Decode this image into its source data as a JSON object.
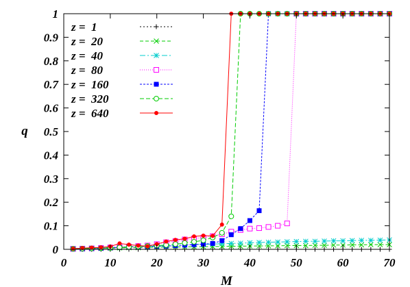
{
  "chart_data": {
    "type": "line",
    "xlabel": "M",
    "ylabel": "q",
    "xlim": [
      0,
      70
    ],
    "ylim": [
      0,
      1
    ],
    "x_ticks": [
      "0",
      "10",
      "20",
      "30",
      "40",
      "50",
      "60",
      "70"
    ],
    "y_ticks": [
      "0",
      "0.1",
      "0.2",
      "0.3",
      "0.4",
      "0.5",
      "0.6",
      "0.7",
      "0.8",
      "0.9",
      "1"
    ],
    "grid": false,
    "legend_position": "top-left",
    "series": [
      {
        "name": "z =  1",
        "color": "#000000",
        "marker": "plus",
        "dash": "2,3",
        "x": [
          2,
          4,
          6,
          8,
          10,
          12,
          14,
          16,
          18,
          20,
          22,
          24,
          26,
          28,
          30,
          32,
          34,
          36,
          38,
          40,
          42,
          44,
          46,
          48,
          50,
          52,
          54,
          56,
          58,
          60,
          62,
          64,
          66,
          68,
          70
        ],
        "y": [
          0,
          0,
          0,
          0,
          0,
          0,
          0,
          0,
          0,
          0,
          0,
          0,
          0,
          0,
          0,
          0,
          0,
          0,
          0,
          0,
          0,
          0,
          0,
          0,
          0,
          0,
          0,
          0,
          0,
          0,
          0,
          0,
          0,
          0,
          0
        ]
      },
      {
        "name": "z =  20",
        "color": "#00cc00",
        "marker": "x",
        "dash": "5,3",
        "x": [
          2,
          4,
          6,
          8,
          10,
          12,
          14,
          16,
          18,
          20,
          22,
          24,
          26,
          28,
          30,
          32,
          34,
          36,
          38,
          40,
          42,
          44,
          46,
          48,
          50,
          52,
          54,
          56,
          58,
          60,
          62,
          64,
          66,
          68,
          70
        ],
        "y": [
          0.002,
          0.003,
          0.004,
          0.004,
          0.005,
          0.006,
          0.007,
          0.007,
          0.008,
          0.009,
          0.009,
          0.01,
          0.01,
          0.011,
          0.011,
          0.012,
          0.012,
          0.013,
          0.013,
          0.014,
          0.014,
          0.015,
          0.015,
          0.016,
          0.016,
          0.016,
          0.017,
          0.017,
          0.018,
          0.018,
          0.019,
          0.019,
          0.02,
          0.02,
          0.02
        ]
      },
      {
        "name": "z =  40",
        "color": "#00cccc",
        "marker": "star",
        "dash": "8,3,2,3",
        "x": [
          2,
          4,
          6,
          8,
          10,
          12,
          14,
          16,
          18,
          20,
          22,
          24,
          26,
          28,
          30,
          32,
          34,
          36,
          38,
          40,
          42,
          44,
          46,
          48,
          50,
          52,
          54,
          56,
          58,
          60,
          62,
          64,
          66,
          68,
          70
        ],
        "y": [
          0.003,
          0.004,
          0.005,
          0.006,
          0.008,
          0.009,
          0.01,
          0.012,
          0.013,
          0.014,
          0.016,
          0.017,
          0.018,
          0.02,
          0.021,
          0.022,
          0.024,
          0.025,
          0.026,
          0.028,
          0.029,
          0.03,
          0.031,
          0.032,
          0.033,
          0.034,
          0.034,
          0.035,
          0.036,
          0.036,
          0.037,
          0.038,
          0.038,
          0.039,
          0.04
        ]
      },
      {
        "name": "z =  80",
        "color": "#ff00ff",
        "marker": "square-open",
        "dash": "1,2",
        "x": [
          2,
          4,
          6,
          8,
          10,
          12,
          14,
          16,
          18,
          20,
          22,
          24,
          26,
          28,
          30,
          32,
          34,
          36,
          38,
          40,
          42,
          44,
          46,
          48,
          50,
          52,
          54,
          56,
          58,
          60,
          62,
          64,
          66,
          68,
          70
        ],
        "y": [
          0.002,
          0.003,
          0.004,
          0.006,
          0.008,
          0.012,
          0.012,
          0.014,
          0.016,
          0.022,
          0.03,
          0.035,
          0.042,
          0.046,
          0.05,
          0.056,
          0.064,
          0.075,
          0.082,
          0.088,
          0.09,
          0.095,
          0.1,
          0.11,
          1,
          1,
          1,
          1,
          1,
          1,
          1,
          1,
          1,
          1,
          1
        ]
      },
      {
        "name": "z =  160",
        "color": "#0000ff",
        "marker": "square-filled",
        "dash": "3,2",
        "x": [
          2,
          4,
          6,
          8,
          10,
          12,
          14,
          16,
          18,
          20,
          22,
          24,
          26,
          28,
          30,
          32,
          34,
          36,
          38,
          40,
          42,
          44,
          46,
          48,
          50,
          52,
          54,
          56,
          58,
          60,
          62,
          64,
          66,
          68,
          70
        ],
        "y": [
          0.002,
          0.002,
          0.003,
          0.004,
          0.006,
          0.008,
          0.01,
          0.011,
          0.012,
          0.013,
          0.014,
          0.016,
          0.018,
          0.02,
          0.022,
          0.025,
          0.037,
          0.062,
          0.088,
          0.122,
          0.164,
          1,
          1,
          1,
          1,
          1,
          1,
          1,
          1,
          1,
          1,
          1,
          1,
          1,
          1
        ]
      },
      {
        "name": "z =  320",
        "color": "#00cc00",
        "marker": "circle-open",
        "dash": "6,3",
        "x": [
          2,
          4,
          6,
          8,
          10,
          12,
          14,
          16,
          18,
          20,
          22,
          24,
          26,
          28,
          30,
          32,
          34,
          36,
          38,
          40,
          42,
          44,
          46,
          48,
          50,
          52,
          54,
          56,
          58,
          60,
          62,
          64,
          66,
          68,
          70
        ],
        "y": [
          0.002,
          0.003,
          0.004,
          0.005,
          0.006,
          0.008,
          0.01,
          0.012,
          0.014,
          0.016,
          0.018,
          0.022,
          0.027,
          0.032,
          0.038,
          0.05,
          0.07,
          0.14,
          1,
          1,
          1,
          1,
          1,
          1,
          1,
          1,
          1,
          1,
          1,
          1,
          1,
          1,
          1,
          1,
          1
        ]
      },
      {
        "name": "z =  640",
        "color": "#ff0000",
        "marker": "circle-filled",
        "dash": "",
        "x": [
          2,
          4,
          6,
          8,
          10,
          12,
          14,
          16,
          18,
          20,
          22,
          24,
          26,
          28,
          30,
          32,
          34,
          36,
          38,
          40,
          42,
          44,
          46,
          48,
          50,
          52,
          54,
          56,
          58,
          60,
          62,
          64,
          66,
          68,
          70
        ],
        "y": [
          0.003,
          0.005,
          0.007,
          0.008,
          0.012,
          0.025,
          0.02,
          0.016,
          0.013,
          0.022,
          0.033,
          0.04,
          0.045,
          0.055,
          0.058,
          0.057,
          0.105,
          1,
          1,
          1,
          1,
          1,
          1,
          1,
          1,
          1,
          1,
          1,
          1,
          1,
          1,
          1,
          1,
          1,
          1
        ]
      }
    ]
  }
}
